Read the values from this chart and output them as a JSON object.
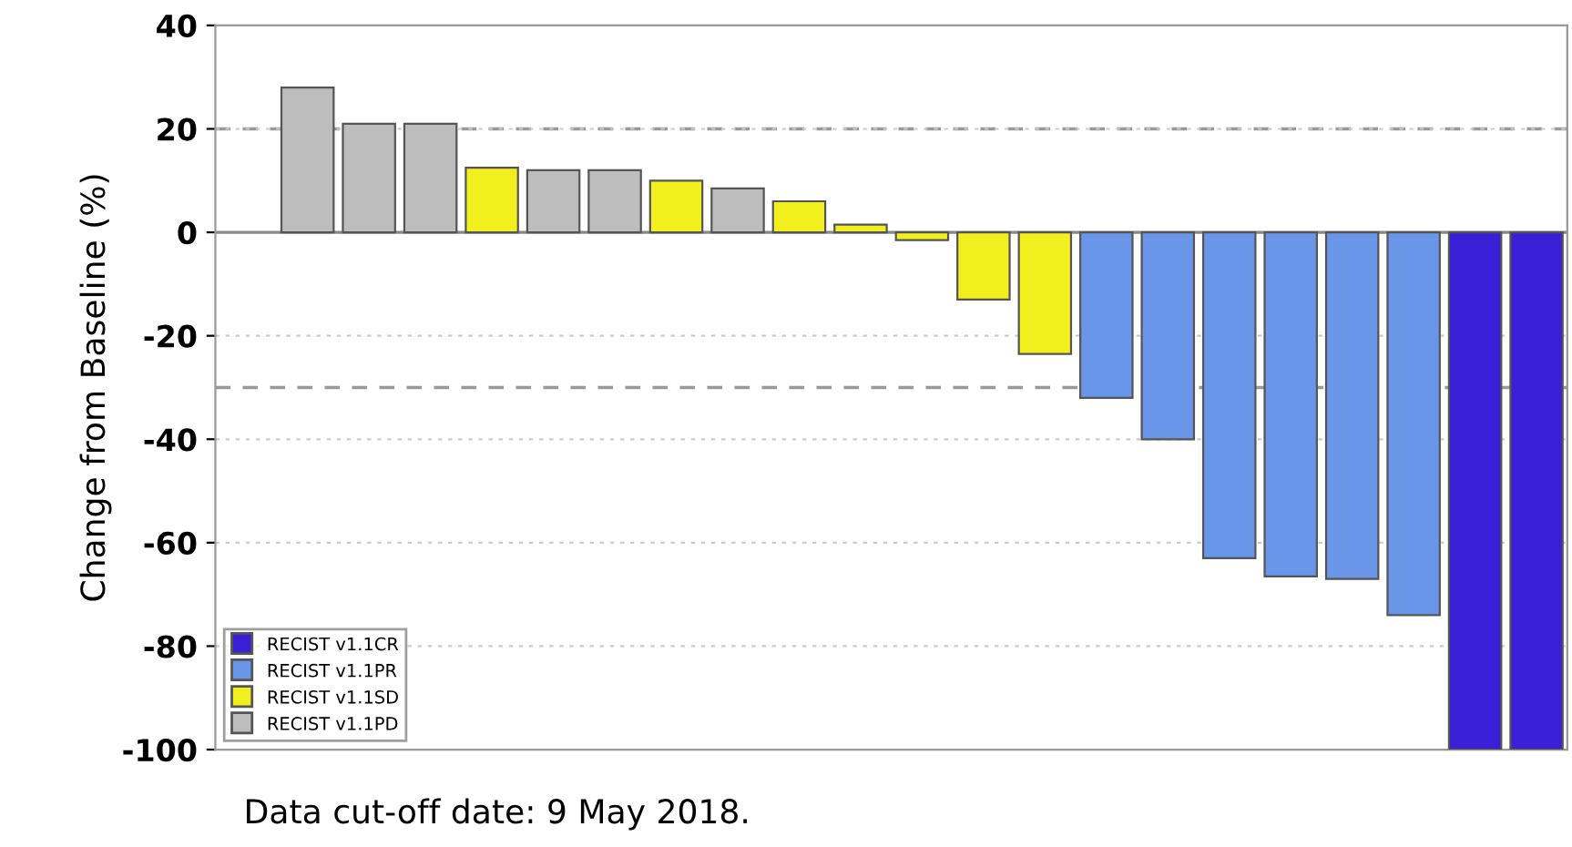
{
  "chart_data": {
    "type": "bar",
    "ylabel": "Change from Baseline (%)",
    "categories": [
      null,
      null,
      null,
      null,
      null,
      null,
      null,
      null,
      null,
      null,
      null,
      null,
      null,
      null,
      null,
      null,
      null,
      null,
      null,
      null,
      null,
      null
    ],
    "series": [
      {
        "name": "RECIST v1.1CR",
        "color": "#3a1fd6",
        "values": [
          null,
          null,
          null,
          null,
          null,
          null,
          null,
          null,
          null,
          null,
          null,
          null,
          null,
          null,
          null,
          null,
          null,
          null,
          null,
          null,
          -100,
          -100
        ]
      },
      {
        "name": "RECIST v1.1PR",
        "color": "#6a96ea",
        "values": [
          null,
          null,
          null,
          null,
          null,
          null,
          null,
          null,
          null,
          null,
          null,
          null,
          null,
          null,
          -32,
          -40,
          -63,
          -66.5,
          -67,
          -74,
          null,
          null
        ]
      },
      {
        "name": "RECIST v1.1SD",
        "color": "#f2ef1e",
        "values": [
          null,
          null,
          null,
          null,
          12.5,
          null,
          null,
          10,
          null,
          6,
          1.5,
          -1.5,
          -13,
          -23.5,
          null,
          null,
          null,
          null,
          null,
          null,
          null,
          null
        ]
      },
      {
        "name": "RECIST v1.1PD",
        "color": "#bdbdbd",
        "values": [
          null,
          28,
          21,
          21,
          null,
          12,
          12,
          null,
          8.5,
          null,
          null,
          null,
          null,
          null,
          null,
          null,
          null,
          null,
          null,
          null,
          null,
          null
        ]
      }
    ],
    "ylim": [
      -100,
      40
    ],
    "yticks": [
      -100,
      -80,
      -60,
      -40,
      -20,
      0,
      20,
      40
    ],
    "grid": "y",
    "legend": "bottom left",
    "ref_lines": [
      {
        "axis": "y",
        "value": 20,
        "label": null,
        "color": "#999999",
        "line_style": "dashed"
      },
      {
        "axis": "y",
        "value": -30,
        "label": null,
        "color": "#999999",
        "line_style": "dashed"
      }
    ],
    "annotations": [
      "Data cut-off date: 9 May 2018."
    ]
  }
}
